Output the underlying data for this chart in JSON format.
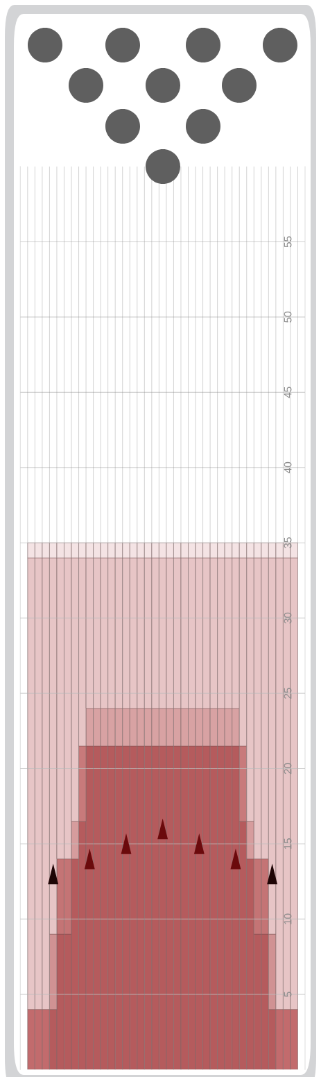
{
  "chart_data": {
    "type": "bar",
    "stacked": true,
    "categories": [
      null,
      null,
      null,
      null,
      null,
      null,
      null,
      null,
      null,
      null,
      null,
      null,
      null,
      null,
      null,
      null,
      null,
      null,
      null,
      null,
      null,
      null,
      null,
      null,
      null,
      null,
      null,
      null,
      null,
      null,
      null,
      null,
      null,
      null,
      null,
      null,
      null,
      null,
      null
    ],
    "ylim": [
      0,
      60
    ],
    "yticks": [
      5,
      10,
      15,
      20,
      25,
      30,
      35,
      40,
      45,
      50,
      55
    ],
    "grid": true,
    "tick_labels": "y",
    "series": [
      {
        "values": [
          0,
          4,
          4,
          4,
          4,
          9,
          9,
          14,
          16.5,
          21.5,
          21.5,
          21.5,
          21.5,
          21.5,
          21.5,
          21.5,
          21.5,
          21.5,
          21.5,
          21.5,
          21.5,
          21.5,
          21.5,
          21.5,
          21.5,
          21.5,
          21.5,
          21.5,
          21.5,
          21.5,
          16.5,
          14,
          9,
          9,
          4,
          4,
          4,
          4,
          0
        ],
        "colors": [
          "#b55b5d",
          "#c26b6d",
          "#c26b6d",
          "#c26b6d",
          "#b55b5d",
          "#b55b5d",
          "#b55b5d",
          "#b55b5d",
          "#b55b5d",
          "#b55b5d",
          "#b55b5d",
          "#b55b5d",
          "#b55b5d",
          "#b55b5d",
          "#b55b5d",
          "#b55b5d",
          "#b55b5d",
          "#b55b5d",
          "#b55b5d",
          "#b55b5d",
          "#b55b5d",
          "#b55b5d",
          "#b55b5d",
          "#b55b5d",
          "#b55b5d",
          "#b55b5d",
          "#b55b5d",
          "#b55b5d",
          "#b55b5d",
          "#b55b5d",
          "#b55b5d",
          "#b55b5d",
          "#b55b5d",
          "#b55b5d",
          "#b55b5d",
          "#c26b6d",
          "#c26b6d",
          "#c26b6d",
          "#b55b5d"
        ]
      },
      {
        "values": [
          0,
          0,
          0,
          0,
          5,
          5,
          5,
          2.5,
          5,
          2.5,
          2.5,
          2.5,
          2.5,
          2.5,
          2.5,
          2.5,
          2.5,
          2.5,
          2.5,
          2.5,
          2.5,
          2.5,
          2.5,
          2.5,
          2.5,
          2.5,
          2.5,
          2.5,
          2.5,
          2.5,
          5,
          2.5,
          5,
          5,
          5,
          0,
          0,
          0,
          0
        ],
        "colors": [
          "#d8a2a3",
          "#d8a2a3",
          "#d8a2a3",
          "#d8a2a3",
          "#d09293",
          "#c47475",
          "#c47475",
          "#d69c9d",
          "#c87a7b",
          "#d8a2a3",
          "#d8a2a3",
          "#d8a2a3",
          "#d8a2a3",
          "#d8a2a3",
          "#d8a2a3",
          "#d8a2a3",
          "#d8a2a3",
          "#d8a2a3",
          "#d8a2a3",
          "#d8a2a3",
          "#d8a2a3",
          "#d8a2a3",
          "#d8a2a3",
          "#d8a2a3",
          "#d8a2a3",
          "#d8a2a3",
          "#d8a2a3",
          "#d8a2a3",
          "#d8a2a3",
          "#d8a2a3",
          "#c87a7b",
          "#d69c9d",
          "#c47475",
          "#c47475",
          "#d09293",
          "#d8a2a3",
          "#d8a2a3",
          "#d8a2a3",
          "#d8a2a3"
        ]
      },
      {
        "color": "#e7c5c6",
        "values": [
          0,
          30,
          30,
          30,
          25,
          20,
          20,
          17.5,
          12.5,
          10,
          10,
          10,
          10,
          10,
          10,
          10,
          10,
          10,
          10,
          10,
          10,
          10,
          10,
          10,
          10,
          10,
          10,
          10,
          10,
          10,
          12.5,
          17.5,
          20,
          20,
          25,
          30,
          30,
          30,
          0
        ]
      },
      {
        "color": "#f4e3e4",
        "values": [
          0,
          1,
          1,
          1,
          1,
          1,
          1,
          1,
          1,
          1,
          1,
          1,
          1,
          1,
          1,
          1,
          1,
          1,
          1,
          1,
          1,
          1,
          1,
          1,
          1,
          1,
          1,
          1,
          1,
          1,
          1,
          1,
          1,
          1,
          1,
          1,
          1,
          1,
          0
        ]
      },
      {
        "type": "scatter",
        "marker": "triangle",
        "values": [
          null,
          null,
          null,
          null,
          13,
          null,
          null,
          null,
          null,
          14,
          null,
          null,
          null,
          null,
          15,
          null,
          null,
          null,
          null,
          16,
          null,
          null,
          null,
          null,
          15,
          null,
          null,
          null,
          null,
          14,
          null,
          null,
          null,
          null,
          13,
          null,
          null,
          null,
          null
        ],
        "colors": [
          "#1e0505",
          "#1e0505",
          "#1e0505",
          "#1e0505",
          "#1e0505",
          "#1e0505",
          "#1e0505",
          "#1e0505",
          "#1e0505",
          "#6b0a0c",
          "#6b0a0c",
          "#6b0a0c",
          "#6b0a0c",
          "#6b0a0c",
          "#6b0a0c",
          "#6b0a0c",
          "#6b0a0c",
          "#6b0a0c",
          "#6b0a0c",
          "#6b0a0c",
          "#6b0a0c",
          "#6b0a0c",
          "#6b0a0c",
          "#6b0a0c",
          "#6b0a0c",
          "#6b0a0c",
          "#6b0a0c",
          "#6b0a0c",
          "#6b0a0c",
          "#6b0a0c",
          "#1e0505",
          "#1e0505",
          "#1e0505",
          "#1e0505",
          "#1e0505",
          "#1e0505",
          "#1e0505",
          "#1e0505",
          "#1e0505"
        ]
      }
    ]
  }
}
